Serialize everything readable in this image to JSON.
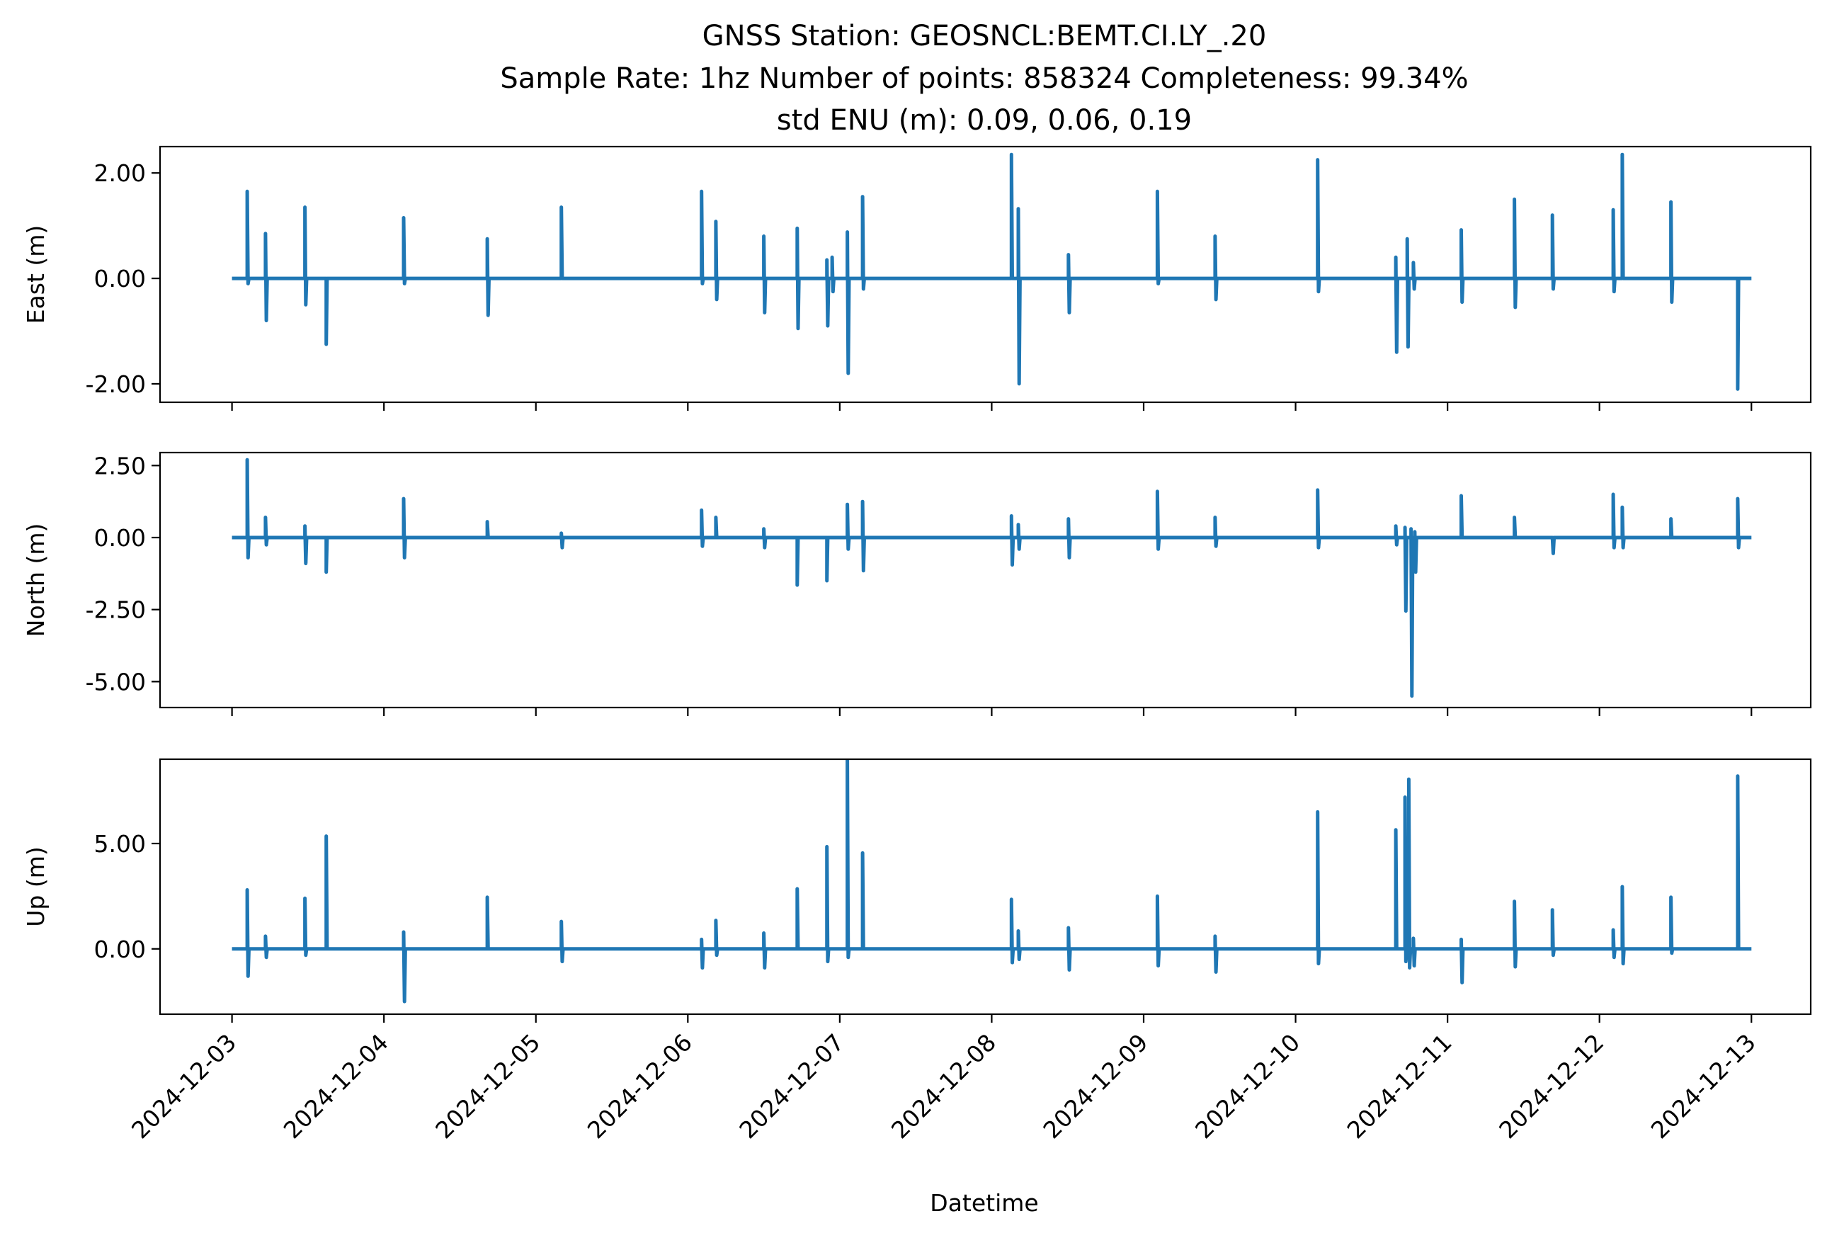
{
  "chart_data": {
    "type": "line",
    "title": [
      "GNSS Station: GEOSNCL:BEMT.CI.LY_.20",
      "Sample Rate: 1hz   Number of points: 858324    Completeness:  99.34%",
      "std ENU (m):  0.09, 0.06, 0.19"
    ],
    "xlabel": "Datetime",
    "x_ticks": [
      "2024-12-03",
      "2024-12-04",
      "2024-12-05",
      "2024-12-06",
      "2024-12-07",
      "2024-12-08",
      "2024-12-09",
      "2024-12-10",
      "2024-12-11",
      "2024-12-12",
      "2024-12-13"
    ],
    "xlim": [
      "2024-12-02T12:38",
      "2024-12-13T09:22"
    ],
    "color": "#1f77b4",
    "grid": false,
    "panels": [
      {
        "ylabel": "East (m)",
        "ylim": [
          -2.35,
          2.5
        ],
        "y_ticks": [
          {
            "value": 2.0,
            "label": "2.00"
          },
          {
            "value": 0.0,
            "label": "0.00"
          },
          {
            "value": -2.0,
            "label": "-2.00"
          }
        ],
        "spikes": [
          [
            "2024-12-03T02:24",
            1.65,
            -0.1
          ],
          [
            "2024-12-03T05:17",
            0.85,
            -0.8
          ],
          [
            "2024-12-03T11:31",
            1.35,
            -0.5
          ],
          [
            "2024-12-03T14:53",
            -1.25,
            0.0
          ],
          [
            "2024-12-04T03:07",
            1.15,
            -0.1
          ],
          [
            "2024-12-04T16:19",
            0.75,
            -0.7
          ],
          [
            "2024-12-05T04:01",
            1.35,
            0.0
          ],
          [
            "2024-12-06T02:10",
            1.65,
            -0.1
          ],
          [
            "2024-12-06T04:26",
            1.08,
            -0.4
          ],
          [
            "2024-12-06T12:00",
            0.8,
            -0.65
          ],
          [
            "2024-12-06T17:17",
            0.95,
            -0.95
          ],
          [
            "2024-12-06T21:58",
            0.35,
            -0.9
          ],
          [
            "2024-12-06T22:48",
            0.4,
            -0.25
          ],
          [
            "2024-12-07T01:12",
            0.88,
            -1.8
          ],
          [
            "2024-12-07T03:36",
            1.55,
            -0.2
          ],
          [
            "2024-12-08T03:07",
            2.35,
            0.0
          ],
          [
            "2024-12-08T04:12",
            1.32,
            -2.0
          ],
          [
            "2024-12-08T12:07",
            0.45,
            -0.65
          ],
          [
            "2024-12-09T02:10",
            1.65,
            -0.1
          ],
          [
            "2024-12-09T11:17",
            0.8,
            -0.4
          ],
          [
            "2024-12-10T03:29",
            2.25,
            -0.25
          ],
          [
            "2024-12-10T15:50",
            0.4,
            -1.4
          ],
          [
            "2024-12-10T17:38",
            0.75,
            -1.3
          ],
          [
            "2024-12-10T18:36",
            0.3,
            -0.2
          ],
          [
            "2024-12-11T02:10",
            0.92,
            -0.45
          ],
          [
            "2024-12-11T10:34",
            1.5,
            -0.55
          ],
          [
            "2024-12-11T16:34",
            1.2,
            -0.2
          ],
          [
            "2024-12-12T02:10",
            1.3,
            -0.25
          ],
          [
            "2024-12-12T03:36",
            2.35,
            0.0
          ],
          [
            "2024-12-12T11:17",
            1.45,
            -0.45
          ],
          [
            "2024-12-12T21:50",
            -2.1,
            0.0
          ]
        ]
      },
      {
        "ylabel": "North (m)",
        "ylim": [
          -5.9,
          2.95
        ],
        "y_ticks": [
          {
            "value": 2.5,
            "label": "2.50"
          },
          {
            "value": 0.0,
            "label": "0.00"
          },
          {
            "value": -2.5,
            "label": "-2.50"
          },
          {
            "value": -5.0,
            "label": "-5.00"
          }
        ],
        "spikes": [
          [
            "2024-12-03T02:24",
            2.7,
            -0.7
          ],
          [
            "2024-12-03T05:17",
            0.7,
            -0.25
          ],
          [
            "2024-12-03T11:31",
            0.4,
            -0.9
          ],
          [
            "2024-12-03T14:53",
            -1.2,
            0.0
          ],
          [
            "2024-12-04T03:07",
            1.35,
            -0.7
          ],
          [
            "2024-12-04T16:19",
            0.55,
            0.0
          ],
          [
            "2024-12-05T04:01",
            0.15,
            -0.35
          ],
          [
            "2024-12-06T02:10",
            0.95,
            -0.3
          ],
          [
            "2024-12-06T04:26",
            0.7,
            0.0
          ],
          [
            "2024-12-06T12:00",
            0.3,
            -0.35
          ],
          [
            "2024-12-06T17:17",
            -1.65,
            0.0
          ],
          [
            "2024-12-06T21:58",
            -1.5,
            0.0
          ],
          [
            "2024-12-07T01:12",
            1.15,
            -0.4
          ],
          [
            "2024-12-07T03:36",
            1.25,
            -1.15
          ],
          [
            "2024-12-08T03:07",
            0.75,
            -0.95
          ],
          [
            "2024-12-08T04:12",
            0.45,
            -0.4
          ],
          [
            "2024-12-08T12:07",
            0.65,
            -0.7
          ],
          [
            "2024-12-09T02:10",
            1.6,
            -0.4
          ],
          [
            "2024-12-09T11:17",
            0.7,
            -0.3
          ],
          [
            "2024-12-10T03:29",
            1.65,
            -0.35
          ],
          [
            "2024-12-10T15:50",
            0.4,
            -0.25
          ],
          [
            "2024-12-10T17:17",
            0.35,
            -2.55
          ],
          [
            "2024-12-10T18:14",
            0.3,
            -5.5
          ],
          [
            "2024-12-10T18:50",
            0.2,
            -1.2
          ],
          [
            "2024-12-11T02:10",
            1.45,
            0.0
          ],
          [
            "2024-12-11T10:34",
            0.7,
            0.0
          ],
          [
            "2024-12-11T16:34",
            0.0,
            -0.55
          ],
          [
            "2024-12-12T02:10",
            1.5,
            -0.35
          ],
          [
            "2024-12-12T03:36",
            1.05,
            -0.35
          ],
          [
            "2024-12-12T11:17",
            0.65,
            0.0
          ],
          [
            "2024-12-12T21:50",
            1.35,
            -0.35
          ]
        ]
      },
      {
        "ylabel": "Up (m)",
        "ylim": [
          -3.1,
          9.0
        ],
        "y_ticks": [
          {
            "value": 5.0,
            "label": "5.00"
          },
          {
            "value": 0.0,
            "label": "0.00"
          }
        ],
        "spikes": [
          [
            "2024-12-03T02:24",
            2.8,
            -1.3
          ],
          [
            "2024-12-03T05:17",
            0.6,
            -0.4
          ],
          [
            "2024-12-03T11:31",
            2.4,
            -0.3
          ],
          [
            "2024-12-03T14:53",
            5.35,
            0.0
          ],
          [
            "2024-12-04T03:07",
            0.8,
            -2.5
          ],
          [
            "2024-12-04T16:19",
            2.45,
            0.0
          ],
          [
            "2024-12-05T04:01",
            1.3,
            -0.6
          ],
          [
            "2024-12-06T02:10",
            0.45,
            -0.9
          ],
          [
            "2024-12-06T04:26",
            1.35,
            -0.3
          ],
          [
            "2024-12-06T12:00",
            0.75,
            -0.9
          ],
          [
            "2024-12-06T17:17",
            2.85,
            0.0
          ],
          [
            "2024-12-06T21:58",
            4.85,
            -0.6
          ],
          [
            "2024-12-07T01:12",
            8.95,
            -0.4
          ],
          [
            "2024-12-07T03:36",
            4.55,
            0.0
          ],
          [
            "2024-12-08T03:07",
            2.35,
            -0.65
          ],
          [
            "2024-12-08T04:12",
            0.85,
            -0.5
          ],
          [
            "2024-12-08T12:07",
            1.0,
            -1.0
          ],
          [
            "2024-12-09T02:10",
            2.5,
            -0.8
          ],
          [
            "2024-12-09T11:17",
            0.6,
            -1.1
          ],
          [
            "2024-12-10T03:29",
            6.5,
            -0.7
          ],
          [
            "2024-12-10T15:50",
            5.65,
            0.0
          ],
          [
            "2024-12-10T17:17",
            7.2,
            -0.6
          ],
          [
            "2024-12-10T17:53",
            8.05,
            -0.9
          ],
          [
            "2024-12-10T18:36",
            0.5,
            -0.8
          ],
          [
            "2024-12-11T02:10",
            0.45,
            -1.6
          ],
          [
            "2024-12-11T10:34",
            2.25,
            -0.85
          ],
          [
            "2024-12-11T16:34",
            1.85,
            -0.3
          ],
          [
            "2024-12-12T02:10",
            0.9,
            -0.4
          ],
          [
            "2024-12-12T03:36",
            2.95,
            -0.7
          ],
          [
            "2024-12-12T11:17",
            2.45,
            -0.2
          ],
          [
            "2024-12-12T21:50",
            8.2,
            0.0
          ]
        ]
      }
    ]
  }
}
